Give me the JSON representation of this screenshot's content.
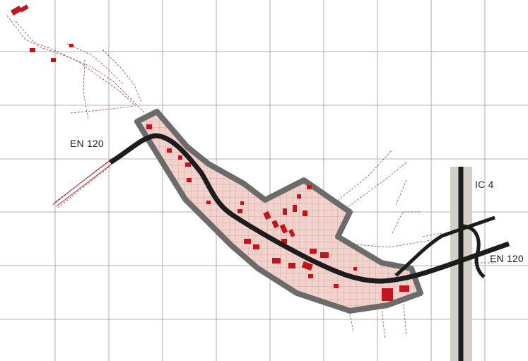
{
  "labels": {
    "en120_west": "EN 120",
    "en120_east": "EN 120",
    "ic4": "IC 4"
  },
  "colors": {
    "background": "#ffffff",
    "grid": "#9a9a9a",
    "zone_fill": "#f2d2cc",
    "zone_hatch": "#d9a29a",
    "zone_border": "#6b6b6b",
    "road": "#1c1c1c",
    "highway_band": "#d2cfc8",
    "buildings": "#c0151c",
    "survey_lines": "#a52a2a"
  }
}
